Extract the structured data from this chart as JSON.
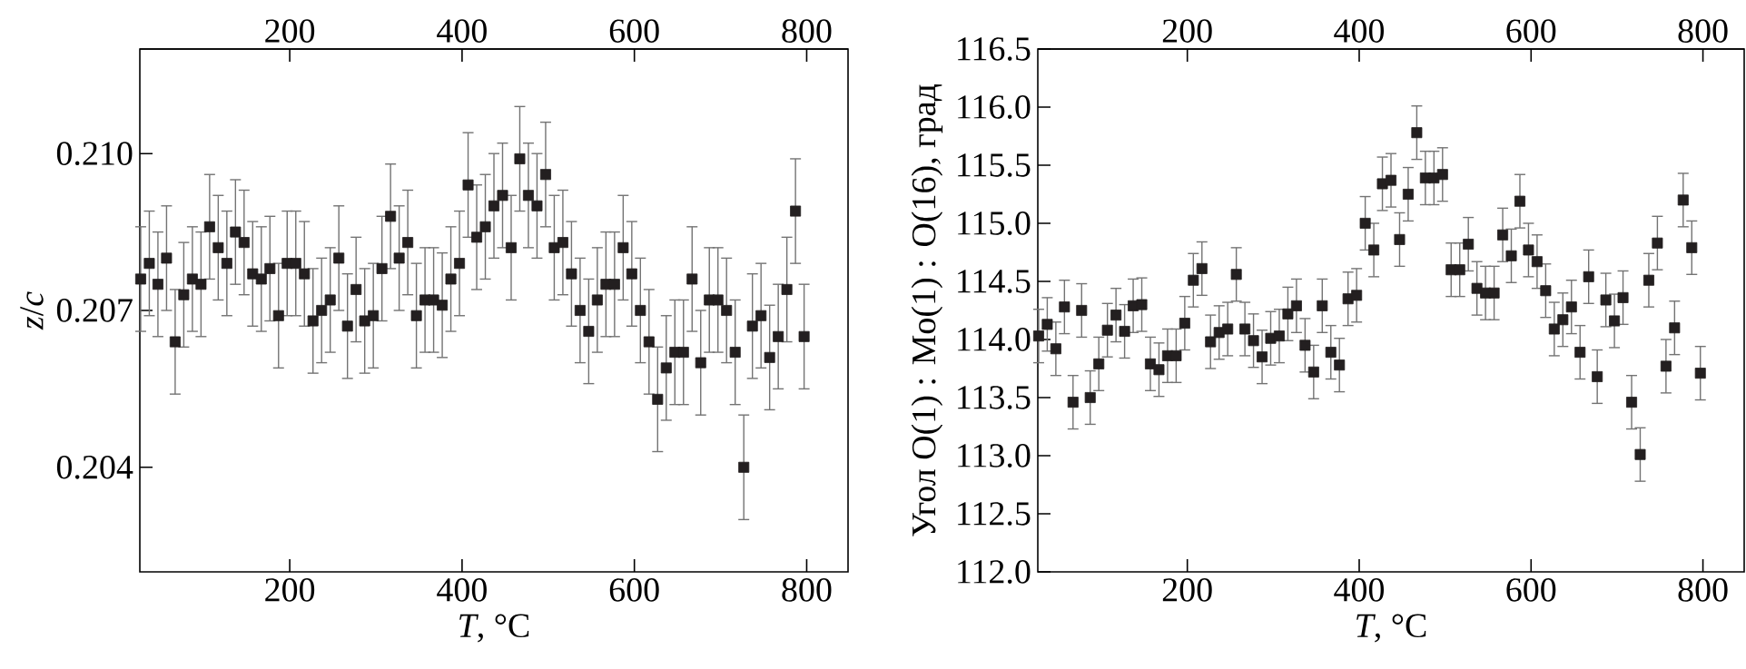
{
  "chart_data": [
    {
      "type": "scatter",
      "xlabel": "*T*, °C",
      "ylabel": "*z*/*c*",
      "marker": "square",
      "color": "#231f20",
      "xlim": [
        26,
        848
      ],
      "xticks": [
        200,
        400,
        600,
        800
      ],
      "x2lim": [
        26,
        848
      ],
      "x2ticks": [
        200,
        400,
        600,
        800
      ],
      "ylim": [
        0.202,
        0.212
      ],
      "yticks": [
        0.204,
        0.207,
        {
          "value": 0.21,
          "label": "0.210"
        }
      ],
      "x": [
        27,
        37,
        47,
        57,
        67,
        77,
        87,
        97,
        107,
        117,
        127,
        137,
        147,
        157,
        167,
        177,
        187,
        197,
        207,
        217,
        227,
        237,
        247,
        257,
        267,
        277,
        287,
        297,
        307,
        317,
        327,
        337,
        347,
        357,
        367,
        377,
        387,
        397,
        407,
        417,
        427,
        437,
        447,
        457,
        467,
        477,
        487,
        497,
        507,
        517,
        527,
        537,
        547,
        557,
        567,
        577,
        587,
        597,
        607,
        617,
        627,
        637,
        647,
        657,
        667,
        677,
        687,
        697,
        707,
        717,
        727,
        737,
        747,
        757,
        767,
        777,
        787,
        797
      ],
      "values": [
        0.2076,
        0.2079,
        0.2075,
        0.208,
        0.2064,
        0.2073,
        0.2076,
        0.2075,
        0.2086,
        0.2082,
        0.2079,
        0.2085,
        0.2083,
        0.2077,
        0.2076,
        0.2078,
        0.2069,
        0.2079,
        0.2079,
        0.2077,
        0.2068,
        0.207,
        0.2072,
        0.208,
        0.2067,
        0.2074,
        0.2068,
        0.2069,
        0.2078,
        0.2088,
        0.208,
        0.2083,
        0.2069,
        0.2072,
        0.2072,
        0.2071,
        0.2076,
        0.2079,
        0.2094,
        0.2084,
        0.2086,
        0.209,
        0.2092,
        0.2082,
        0.2099,
        0.2092,
        0.209,
        0.2096,
        0.2082,
        0.2083,
        0.2077,
        0.207,
        0.2066,
        0.2072,
        0.2075,
        0.2075,
        0.2082,
        0.2077,
        0.207,
        0.2064,
        0.2053,
        0.2059,
        0.2062,
        0.2062,
        0.2076,
        0.206,
        0.2072,
        0.2072,
        0.207,
        0.2062,
        0.204,
        0.2067,
        0.2069,
        0.2061,
        0.2065,
        0.2074,
        0.2089,
        0.2065
      ],
      "errors": [
        0.001,
        0.001,
        0.001,
        0.001,
        0.001,
        0.001,
        0.001,
        0.001,
        0.001,
        0.001,
        0.001,
        0.001,
        0.001,
        0.001,
        0.001,
        0.001,
        0.001,
        0.001,
        0.001,
        0.001,
        0.001,
        0.001,
        0.001,
        0.001,
        0.001,
        0.001,
        0.001,
        0.001,
        0.001,
        0.001,
        0.001,
        0.001,
        0.001,
        0.001,
        0.001,
        0.001,
        0.001,
        0.001,
        0.001,
        0.001,
        0.001,
        0.001,
        0.001,
        0.001,
        0.001,
        0.001,
        0.001,
        0.001,
        0.001,
        0.001,
        0.001,
        0.001,
        0.001,
        0.001,
        0.001,
        0.001,
        0.001,
        0.001,
        0.001,
        0.001,
        0.001,
        0.001,
        0.001,
        0.001,
        0.001,
        0.001,
        0.001,
        0.001,
        0.001,
        0.001,
        0.001,
        0.001,
        0.001,
        0.001,
        0.001,
        0.001,
        0.001,
        0.001
      ]
    },
    {
      "type": "scatter",
      "xlabel": "*T*, °C",
      "ylabel": "Угол O(1) : Mo(1) : O(16), град",
      "marker": "square",
      "color": "#231f20",
      "xlim": [
        26,
        848
      ],
      "xticks": [
        200,
        400,
        600,
        800
      ],
      "x2lim": [
        26,
        848
      ],
      "x2ticks": [
        200,
        400,
        600,
        800
      ],
      "ylim": [
        112.0,
        116.5
      ],
      "yticks": [
        {
          "value": 112,
          "label": "112.0"
        },
        112.5,
        {
          "value": 113,
          "label": "113.0"
        },
        113.5,
        {
          "value": 114,
          "label": "114.0"
        },
        114.5,
        {
          "value": 115,
          "label": "115.0"
        },
        115.5,
        {
          "value": 116,
          "label": "116.0"
        },
        116.5
      ],
      "x": [
        27,
        37,
        47,
        57,
        67,
        77,
        87,
        97,
        107,
        117,
        127,
        137,
        147,
        157,
        167,
        177,
        187,
        197,
        207,
        217,
        227,
        237,
        247,
        257,
        267,
        277,
        287,
        297,
        307,
        317,
        327,
        337,
        347,
        357,
        367,
        377,
        387,
        397,
        407,
        417,
        427,
        437,
        447,
        457,
        467,
        477,
        487,
        497,
        507,
        517,
        527,
        537,
        547,
        557,
        567,
        577,
        587,
        597,
        607,
        617,
        627,
        637,
        647,
        657,
        667,
        677,
        687,
        697,
        707,
        717,
        727,
        737,
        747,
        757,
        767,
        777,
        787,
        797
      ],
      "values": [
        114.03,
        114.13,
        113.92,
        114.28,
        113.46,
        114.25,
        113.5,
        113.79,
        114.08,
        114.21,
        114.07,
        114.29,
        114.3,
        113.79,
        113.74,
        113.86,
        113.86,
        114.14,
        114.51,
        114.61,
        113.98,
        114.06,
        114.09,
        114.56,
        114.09,
        113.99,
        113.85,
        114.01,
        114.03,
        114.22,
        114.29,
        113.95,
        113.72,
        114.29,
        113.89,
        113.78,
        114.35,
        114.38,
        115.0,
        114.77,
        115.34,
        115.37,
        114.86,
        115.25,
        115.78,
        115.39,
        115.39,
        115.42,
        114.6,
        114.6,
        114.82,
        114.44,
        114.4,
        114.4,
        114.9,
        114.72,
        115.19,
        114.77,
        114.67,
        114.42,
        114.09,
        114.17,
        114.28,
        113.89,
        114.54,
        113.68,
        114.34,
        114.16,
        114.36,
        113.46,
        113.01,
        114.51,
        114.83,
        113.77,
        114.1,
        115.2,
        114.79,
        113.71
      ],
      "errors": [
        0.23,
        0.23,
        0.23,
        0.23,
        0.23,
        0.23,
        0.23,
        0.23,
        0.23,
        0.23,
        0.23,
        0.23,
        0.23,
        0.23,
        0.23,
        0.23,
        0.23,
        0.23,
        0.23,
        0.23,
        0.23,
        0.23,
        0.23,
        0.23,
        0.23,
        0.23,
        0.23,
        0.23,
        0.23,
        0.23,
        0.23,
        0.23,
        0.23,
        0.23,
        0.23,
        0.23,
        0.23,
        0.23,
        0.23,
        0.23,
        0.23,
        0.23,
        0.23,
        0.23,
        0.23,
        0.23,
        0.23,
        0.23,
        0.23,
        0.23,
        0.23,
        0.23,
        0.23,
        0.23,
        0.23,
        0.23,
        0.23,
        0.23,
        0.23,
        0.23,
        0.23,
        0.23,
        0.23,
        0.23,
        0.23,
        0.23,
        0.23,
        0.23,
        0.23,
        0.23,
        0.23,
        0.23,
        0.23,
        0.23,
        0.23,
        0.23,
        0.23,
        0.23
      ]
    }
  ]
}
